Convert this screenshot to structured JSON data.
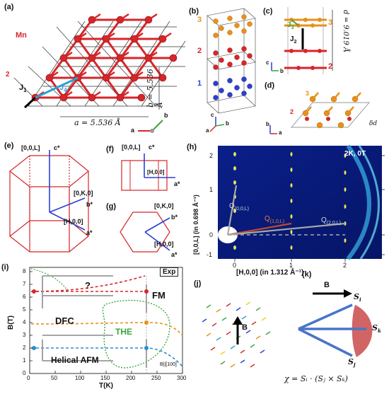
{
  "panels": {
    "a": "(a)",
    "b": "(b)",
    "c": "(c)",
    "d": "(d)",
    "e": "(e)",
    "f": "(f)",
    "g": "(g)",
    "h": "(h)",
    "i": "(i)",
    "j": "(j)",
    "k": "(k)"
  },
  "panel_a": {
    "mn_label": "Mn",
    "layer_label": "2",
    "j1": "J",
    "j1_sub": "1",
    "j4": "J",
    "j4_sub": "4",
    "a_param": "a = 5.536 Å",
    "b_param": "b = 5.536 Å",
    "axis_b": "b",
    "axis_a": "a"
  },
  "panel_b": {
    "layer3": "3",
    "layer2": "2",
    "layer1": "1",
    "axis_c": "c",
    "axis_b": "b",
    "axis_a": "a"
  },
  "panel_c": {
    "j3": "J",
    "j3_sub": "3",
    "j2": "J",
    "j2_sub": "2",
    "layer3": "3",
    "layer2": "2",
    "d_param": "d = 9.019 Å",
    "axis_c": "c",
    "axis_b": "b"
  },
  "panel_d": {
    "layer3": "3",
    "layer2": "2",
    "delta_d": "δd",
    "axis_b": "b",
    "axis_a": "a"
  },
  "panel_e": {
    "l00": "[0,0,L]",
    "c_star": "c*",
    "k0": "[0,K,0]",
    "b_star": "b*",
    "h00": "[H,0,0]",
    "a_star": "a*"
  },
  "panel_f": {
    "l00": "[0,0,L]",
    "c_star": "c*",
    "h00": "[H,0,0]",
    "a_star": "a*"
  },
  "panel_g": {
    "k0": "[0,K,0]",
    "b_star": "b*",
    "h00": "[H,0,0]",
    "a_star": "a*"
  },
  "panel_h": {
    "condition": "2K, 0T",
    "q00l": "Q",
    "q00l_sub": "(0,0,L)",
    "q10l": "Q",
    "q10l_sub": "(1,0,L)",
    "q20l": "Q",
    "q20l_sub": "(2,0,L)",
    "xlabel": "[H,0,0] (in 1.312 Å⁻¹)",
    "ylabel": "[0,0,L] (in 0.698 Å⁻¹)",
    "xticks": [
      "0",
      "1",
      "2"
    ],
    "yticks": [
      "-1",
      "0",
      "1",
      "2"
    ]
  },
  "panel_i": {
    "exp": "Exp",
    "question": "?",
    "fm": "FM",
    "dfc": "DFC",
    "the": "THE",
    "helical": "Helical AFM",
    "field_dir": "B||[100]",
    "xlabel": "T(K)",
    "ylabel": "B(T)",
    "xticks": [
      "0",
      "50",
      "100",
      "150",
      "200",
      "250",
      "300"
    ],
    "yticks": [
      "0",
      "1",
      "2",
      "3",
      "4",
      "5",
      "6",
      "7",
      "8"
    ]
  },
  "panel_j": {
    "b_label": "B"
  },
  "panel_k": {
    "b_label": "B",
    "si": "S",
    "si_sub": "i",
    "sj": "S",
    "sj_sub": "j",
    "sk": "S",
    "sk_sub": "k",
    "formula": "χ = Sᵢ · (Sⱼ × Sₖ)"
  },
  "colors": {
    "red": "#d6262a",
    "orange": "#e8901b",
    "blue": "#2b3fd3",
    "green": "#3aa63a",
    "cyan": "#2aa1d6",
    "navy": "#0a1f8a"
  }
}
